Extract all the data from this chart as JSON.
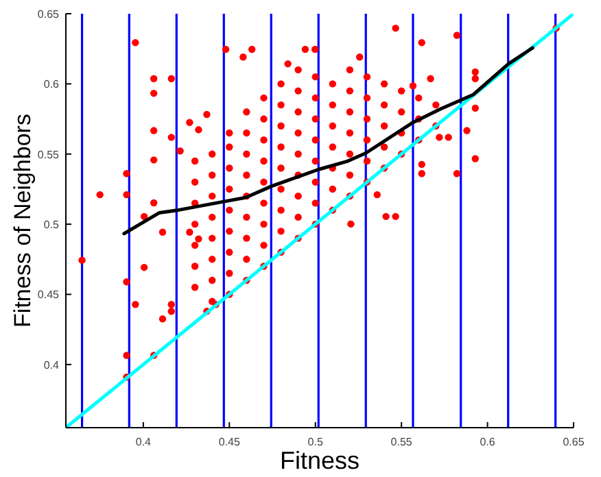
{
  "chart_data": {
    "type": "scatter",
    "xlabel": "Fitness",
    "ylabel": "Fitness of Neighbors",
    "xlim": [
      0.355,
      0.65
    ],
    "ylim": [
      0.355,
      0.65
    ],
    "xticks": [
      0.4,
      0.45,
      0.5,
      0.55,
      0.6,
      0.65
    ],
    "yticks": [
      0.4,
      0.45,
      0.5,
      0.55,
      0.6,
      0.65
    ],
    "grid": false,
    "ref_lines": [
      {
        "axis": "x",
        "value": 0.3644,
        "color": "#0000ff"
      },
      {
        "axis": "x",
        "value": 0.3918,
        "color": "#0000ff"
      },
      {
        "axis": "x",
        "value": 0.4193,
        "color": "#0000ff"
      },
      {
        "axis": "x",
        "value": 0.4468,
        "color": "#0000ff"
      },
      {
        "axis": "x",
        "value": 0.4743,
        "color": "#0000ff"
      },
      {
        "axis": "x",
        "value": 0.5018,
        "color": "#0000ff"
      },
      {
        "axis": "x",
        "value": 0.5293,
        "color": "#0000ff"
      },
      {
        "axis": "x",
        "value": 0.5567,
        "color": "#0000ff"
      },
      {
        "axis": "x",
        "value": 0.5845,
        "color": "#0000ff"
      },
      {
        "axis": "x",
        "value": 0.612,
        "color": "#0000ff"
      },
      {
        "axis": "x",
        "value": 0.6395,
        "color": "#0000ff"
      }
    ],
    "series": [
      {
        "color": "#ff0000",
        "marker": "circle",
        "x": [
          0.3954,
          0.3748,
          0.3644,
          0.3903,
          0.3903,
          0.3903,
          0.4061,
          0.3954,
          0.4005,
          0.4112,
          0.4163,
          0.4163,
          0.4369,
          0.4422,
          0.3903,
          0.3903,
          0.4061,
          0.4061,
          0.4163,
          0.4163,
          0.4061,
          0.4061,
          0.4061,
          0.4112,
          0.4005,
          0.4214,
          0.4269,
          0.4321,
          0.4369,
          0.4269,
          0.4321,
          0.4479,
          0.458,
          0.4631,
          0.4941,
          0.4998,
          0.484,
          0.5257,
          0.5466,
          0.5618,
          0.5822,
          0.6399,
          0.5929,
          0.5929,
          0.5929,
          0.5929,
          0.5822,
          0.5618,
          0.5618,
          0.5773,
          0.572,
          0.541,
          0.5466,
          0.5206,
          0.5359,
          0.5567,
          0.5669,
          0.588,
          0.43,
          0.43,
          0.43,
          0.43,
          0.43,
          0.43,
          0.43,
          0.44,
          0.44,
          0.44,
          0.44,
          0.44,
          0.44,
          0.44,
          0.44,
          0.45,
          0.45,
          0.45,
          0.45,
          0.45,
          0.45,
          0.45,
          0.45,
          0.45,
          0.46,
          0.46,
          0.46,
          0.46,
          0.46,
          0.46,
          0.46,
          0.46,
          0.46,
          0.47,
          0.47,
          0.47,
          0.47,
          0.47,
          0.47,
          0.47,
          0.47,
          0.47,
          0.48,
          0.48,
          0.48,
          0.48,
          0.48,
          0.48,
          0.48,
          0.48,
          0.48,
          0.49,
          0.49,
          0.49,
          0.49,
          0.49,
          0.49,
          0.49,
          0.49,
          0.49,
          0.5,
          0.5,
          0.5,
          0.5,
          0.5,
          0.5,
          0.5,
          0.5,
          0.51,
          0.51,
          0.51,
          0.51,
          0.51,
          0.51,
          0.51,
          0.52,
          0.52,
          0.52,
          0.52,
          0.52,
          0.52,
          0.52,
          0.53,
          0.53,
          0.53,
          0.53,
          0.53,
          0.53,
          0.54,
          0.54,
          0.54,
          0.54,
          0.54,
          0.55,
          0.55,
          0.55,
          0.55,
          0.56,
          0.56,
          0.56,
          0.57,
          0.57
        ],
        "values": [
          0.6294,
          0.521,
          0.4743,
          0.4589,
          0.4065,
          0.391,
          0.4065,
          0.4428,
          0.4692,
          0.4325,
          0.4428,
          0.4379,
          0.4379,
          0.4428,
          0.5361,
          0.521,
          0.6037,
          0.5933,
          0.6037,
          0.5619,
          0.5667,
          0.5458,
          0.5152,
          0.4943,
          0.5055,
          0.5522,
          0.5725,
          0.5673,
          0.5782,
          0.4943,
          0.4895,
          0.6246,
          0.6191,
          0.6246,
          0.6246,
          0.6246,
          0.6143,
          0.6191,
          0.6397,
          0.6294,
          0.6346,
          0.6397,
          0.6085,
          0.6037,
          0.5827,
          0.5467,
          0.5361,
          0.5361,
          0.5426,
          0.5619,
          0.5619,
          0.5055,
          0.5055,
          0.5001,
          0.521,
          0.5986,
          0.6037,
          0.5667,
          0.455,
          0.47,
          0.485,
          0.5,
          0.515,
          0.53,
          0.545,
          0.445,
          0.46,
          0.475,
          0.49,
          0.505,
          0.52,
          0.535,
          0.55,
          0.45,
          0.465,
          0.48,
          0.495,
          0.51,
          0.525,
          0.54,
          0.555,
          0.565,
          0.46,
          0.475,
          0.49,
          0.505,
          0.52,
          0.535,
          0.55,
          0.565,
          0.58,
          0.47,
          0.485,
          0.5,
          0.515,
          0.53,
          0.545,
          0.56,
          0.575,
          0.59,
          0.48,
          0.495,
          0.51,
          0.525,
          0.54,
          0.555,
          0.57,
          0.585,
          0.6,
          0.49,
          0.505,
          0.52,
          0.535,
          0.55,
          0.565,
          0.58,
          0.595,
          0.61,
          0.5,
          0.515,
          0.53,
          0.545,
          0.56,
          0.575,
          0.59,
          0.605,
          0.51,
          0.525,
          0.54,
          0.555,
          0.57,
          0.585,
          0.6,
          0.52,
          0.535,
          0.55,
          0.565,
          0.58,
          0.595,
          0.61,
          0.53,
          0.545,
          0.56,
          0.575,
          0.59,
          0.605,
          0.54,
          0.555,
          0.57,
          0.585,
          0.6,
          0.55,
          0.565,
          0.58,
          0.595,
          0.56,
          0.575,
          0.59,
          0.57,
          0.585
        ]
      },
      {
        "type": "line",
        "color": "#00ffff",
        "x": [
          0.355,
          0.65
        ],
        "values": [
          0.355,
          0.65
        ]
      },
      {
        "type": "line",
        "color": "#000000",
        "x": [
          0.3888,
          0.4092,
          0.4201,
          0.4468,
          0.4595,
          0.4743,
          0.5018,
          0.5185,
          0.5292,
          0.5567,
          0.5727,
          0.5918,
          0.6122,
          0.6262
        ],
        "values": [
          0.4933,
          0.5081,
          0.51,
          0.5161,
          0.519,
          0.527,
          0.539,
          0.5448,
          0.5506,
          0.5725,
          0.5821,
          0.5924,
          0.6143,
          0.6256
        ]
      }
    ]
  }
}
